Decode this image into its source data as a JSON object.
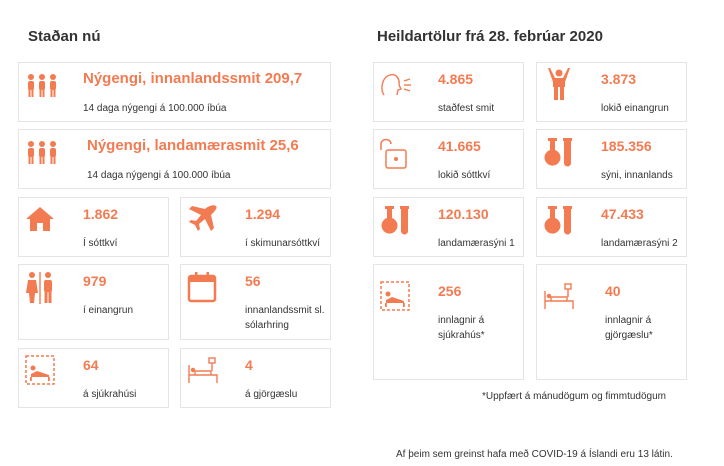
{
  "left": {
    "heading": "Staðan nú",
    "wide_cards": [
      {
        "value": "Nýgengi, innanlandssmit 209,7",
        "label": "14 daga nýgengi á 100.000 íbúa",
        "icon": "people-group-icon"
      },
      {
        "value": "Nýgengi, landamærasmit 25,6",
        "label": "14 daga nýgengi á 100.000 íbúa",
        "icon": "people-group-icon"
      }
    ],
    "cards": [
      {
        "value": "1.862",
        "label": "Í sóttkví",
        "icon": "house-icon"
      },
      {
        "value": "1.294",
        "label": "í skimunarsóttkví",
        "icon": "airplane-icon"
      },
      {
        "value": "979",
        "label": "í einangrun",
        "icon": "isolated-people-icon"
      },
      {
        "value": "56",
        "label": "innanlandssmit sl. sólarhring",
        "icon": "calendar-icon"
      },
      {
        "value": "64",
        "label": "á sjúkrahúsi",
        "icon": "hospital-bed-icon"
      },
      {
        "value": "4",
        "label": "á gjörgæslu",
        "icon": "icu-bed-icon"
      }
    ]
  },
  "right": {
    "heading": "Heildartölur frá 28. febrúar 2020",
    "cards": [
      {
        "value": "4.865",
        "label": "staðfest smit",
        "icon": "sick-face-icon"
      },
      {
        "value": "3.873",
        "label": "lokið einangrun",
        "icon": "person-arms-up-icon"
      },
      {
        "value": "41.665",
        "label": "lokið sóttkví",
        "icon": "unlocked-padlock-icon"
      },
      {
        "value": "185.356",
        "label": "sýni, innanlands",
        "icon": "test-tubes-icon"
      },
      {
        "value": "120.130",
        "label": "landamærasýni 1",
        "icon": "test-tubes-icon"
      },
      {
        "value": "47.433",
        "label": "landamærasýni 2",
        "icon": "test-tubes-icon"
      },
      {
        "value": "256",
        "label": "innlagnir á sjúkrahús*",
        "icon": "hospital-bed-icon"
      },
      {
        "value": "40",
        "label": "innlagnir á gjörgæslu*",
        "icon": "icu-bed-icon"
      }
    ],
    "footnote": "*Uppfært á mánudögum og fimmtudögum"
  },
  "footer": "Af þeim sem greinst hafa með COVID-19 á Íslandi eru 13 látin.",
  "colors": {
    "accent": "#f37b52",
    "border": "#e4e4e4",
    "text": "#333333"
  }
}
